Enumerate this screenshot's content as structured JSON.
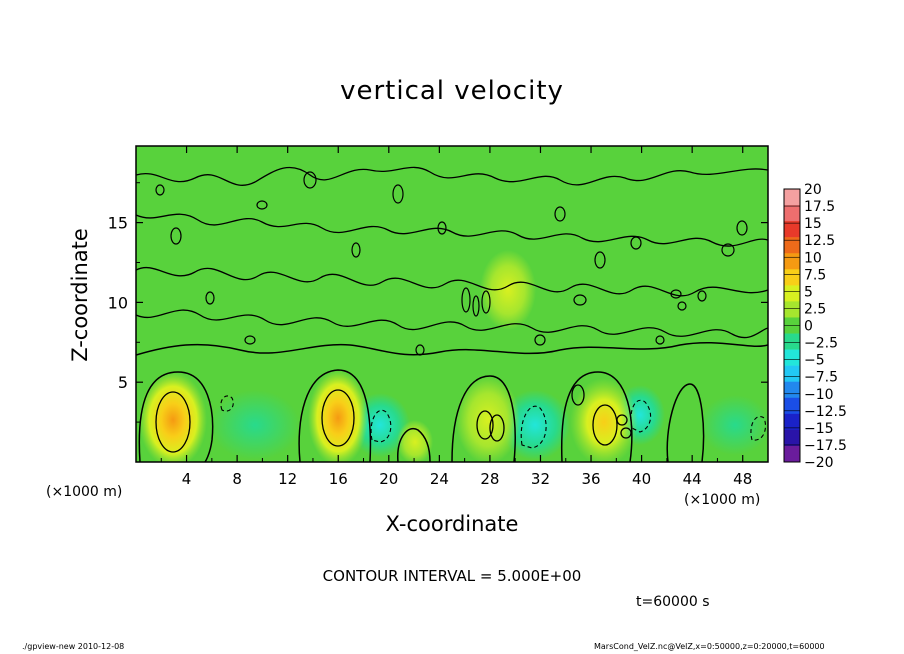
{
  "chart_data": {
    "type": "heatmap",
    "title": "vertical velocity",
    "xlabel": "X-coordinate",
    "ylabel": "Z-coordinate",
    "x_unit_label": "(×1000 m)",
    "xlim": [
      0,
      50
    ],
    "ylim": [
      0,
      19.8
    ],
    "x_ticks": [
      4,
      8,
      12,
      16,
      20,
      24,
      28,
      32,
      36,
      40,
      44,
      48
    ],
    "y_ticks": [
      5,
      10,
      15
    ],
    "colorbar": {
      "levels": [
        20,
        17.5,
        15,
        12.5,
        10,
        7.5,
        5,
        2.5,
        0,
        -2.5,
        -5,
        -7.5,
        -10,
        -12.5,
        -15,
        -17.5,
        -20
      ],
      "labels": [
        "20",
        "17.5",
        "15",
        "12.5",
        "10",
        "7.5",
        "5",
        "2.5",
        "0",
        "−2.5",
        "−5",
        "−7.5",
        "−10",
        "−12.5",
        "−15",
        "−17.5",
        "−20"
      ],
      "colors": [
        "#f4a0a0",
        "#ee6e6e",
        "#e83a2a",
        "#ee6a1a",
        "#f59a12",
        "#f8cf18",
        "#d8f020",
        "#a6e62e",
        "#58d23c",
        "#28da8c",
        "#22e6da",
        "#22c8f4",
        "#2288ee",
        "#1a4ee6",
        "#1a22c8",
        "#2a14a8",
        "#6a1c9c"
      ]
    },
    "features": [
      {
        "type": "updraft",
        "x": 3,
        "z": 2.5,
        "value": 7.5
      },
      {
        "type": "updraft",
        "x": 16,
        "z": 2.7,
        "value": 10
      },
      {
        "type": "updraft",
        "x": 28,
        "z": 2.5,
        "value": 5
      },
      {
        "type": "updraft",
        "x": 37,
        "z": 2.5,
        "value": 7.5
      },
      {
        "type": "downdraft",
        "x": 19,
        "z": 2.3,
        "value": -5
      },
      {
        "type": "downdraft",
        "x": 31.5,
        "z": 2.5,
        "value": -5
      },
      {
        "type": "downdraft",
        "x": 39.5,
        "z": 3.0,
        "value": -5
      }
    ]
  },
  "contour_interval": "CONTOUR INTERVAL = 5.000E+00",
  "time_label": "t=60000 s",
  "footer_left": "./gpview-new  2010-12-08",
  "footer_right": "MarsCond_VelZ.nc@VelZ,x=0:50000,z=0:20000,t=60000"
}
